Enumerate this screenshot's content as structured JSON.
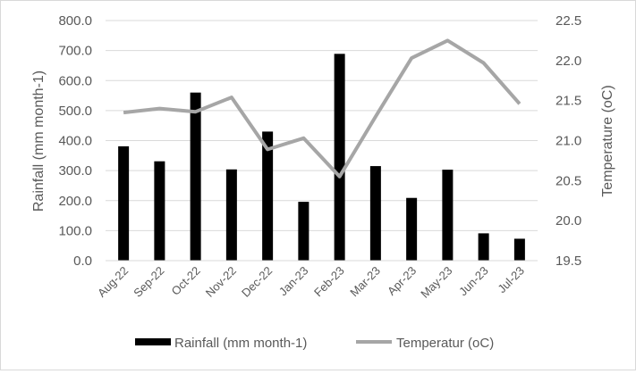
{
  "chart_data": {
    "type": "bar",
    "categories": [
      "Aug-22",
      "Sep-22",
      "Oct-22",
      "Nov-22",
      "Dec-22",
      "Jan-23",
      "Feb-23",
      "Mar-23",
      "Apr-23",
      "May-23",
      "Jun-23",
      "Jul-23"
    ],
    "series": [
      {
        "name": "Rainfall (mm month-1)",
        "type": "bar",
        "axis": "left",
        "color": "#000000",
        "values": [
          381,
          331,
          560,
          304,
          430,
          196,
          689,
          315,
          209,
          303,
          91,
          73
        ]
      },
      {
        "name": "Temperatur (oC)",
        "type": "line",
        "axis": "right",
        "color": "#a6a6a6",
        "values": [
          21.35,
          21.4,
          21.36,
          21.54,
          20.89,
          21.03,
          20.55,
          21.3,
          22.03,
          22.25,
          21.97,
          21.46
        ]
      }
    ],
    "ylabel": "Rainfall (mm month-1)",
    "y2label": "Temperature (oC)",
    "ylim": [
      0,
      800
    ],
    "y2lim": [
      19.5,
      22.5
    ],
    "yticks": [
      "0.0",
      "100.0",
      "200.0",
      "300.0",
      "400.0",
      "500.0",
      "600.0",
      "700.0",
      "800.0"
    ],
    "y2ticks": [
      "19.5",
      "20.0",
      "20.5",
      "21.0",
      "21.5",
      "22.0",
      "22.5"
    ],
    "grid": true,
    "legend_position": "bottom"
  }
}
